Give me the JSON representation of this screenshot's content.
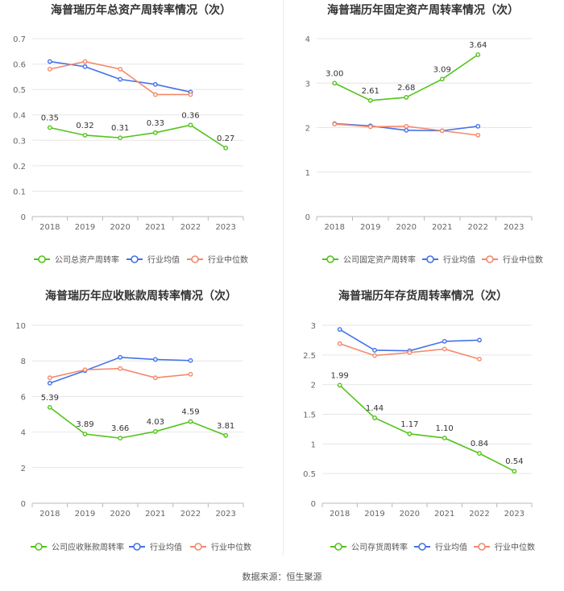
{
  "source_text": "数据来源：恒生聚源",
  "colors": {
    "company": "#52c41a",
    "avg": "#4472e8",
    "median": "#f4896b",
    "grid": "#e6e6e6",
    "axis": "#b8b8b8",
    "tick": "#666666",
    "title": "#333333"
  },
  "chart_data": [
    {
      "type": "line",
      "title": "海普瑞历年总资产周转率情况（次）",
      "categories": [
        "2018",
        "2019",
        "2020",
        "2021",
        "2022",
        "2023"
      ],
      "ylim": [
        0,
        0.7
      ],
      "yticks": [
        "0",
        "0.1",
        "0.2",
        "0.3",
        "0.4",
        "0.5",
        "0.6",
        "0.7"
      ],
      "series": [
        {
          "name": "公司总资产周转率",
          "key": "company",
          "values": [
            0.35,
            0.32,
            0.31,
            0.33,
            0.36,
            0.27
          ],
          "labels": [
            "0.35",
            "0.32",
            "0.31",
            "0.33",
            "0.36",
            "0.27"
          ]
        },
        {
          "name": "行业均值",
          "key": "avg",
          "values": [
            0.61,
            0.59,
            0.54,
            0.52,
            0.49,
            null
          ]
        },
        {
          "name": "行业中位数",
          "key": "median",
          "values": [
            0.58,
            0.61,
            0.58,
            0.48,
            0.48,
            null
          ]
        }
      ]
    },
    {
      "type": "line",
      "title": "海普瑞历年固定资产周转率情况（次）",
      "categories": [
        "2018",
        "2019",
        "2020",
        "2021",
        "2022",
        "2023"
      ],
      "ylim": [
        0,
        4
      ],
      "yticks": [
        "0",
        "1",
        "2",
        "3",
        "4"
      ],
      "series": [
        {
          "name": "公司固定资产周转率",
          "key": "company",
          "values": [
            3.0,
            2.61,
            2.68,
            3.09,
            3.64,
            null
          ],
          "labels": [
            "3.00",
            "2.61",
            "2.68",
            "3.09",
            "3.64",
            ""
          ]
        },
        {
          "name": "行业均值",
          "key": "avg",
          "values": [
            2.09,
            2.04,
            1.94,
            1.93,
            2.03,
            null
          ]
        },
        {
          "name": "行业中位数",
          "key": "median",
          "values": [
            2.08,
            2.02,
            2.03,
            1.93,
            1.83,
            null
          ]
        }
      ]
    },
    {
      "type": "line",
      "title": "海普瑞历年应收账款周转率情况（次）",
      "categories": [
        "2018",
        "2019",
        "2020",
        "2021",
        "2022",
        "2023"
      ],
      "ylim": [
        0,
        10
      ],
      "yticks": [
        "0",
        "2",
        "4",
        "6",
        "8",
        "10"
      ],
      "series": [
        {
          "name": "公司应收账款周转率",
          "key": "company",
          "values": [
            5.39,
            3.89,
            3.66,
            4.03,
            4.59,
            3.81
          ],
          "labels": [
            "5.39",
            "3.89",
            "3.66",
            "4.03",
            "4.59",
            "3.81"
          ]
        },
        {
          "name": "行业均值",
          "key": "avg",
          "values": [
            6.75,
            7.45,
            8.2,
            8.08,
            8.02,
            null
          ]
        },
        {
          "name": "行业中位数",
          "key": "median",
          "values": [
            7.05,
            7.5,
            7.57,
            7.05,
            7.25,
            null
          ]
        }
      ]
    },
    {
      "type": "line",
      "title": "海普瑞历年存货周转率情况（次）",
      "categories": [
        "2018",
        "2019",
        "2020",
        "2021",
        "2022",
        "2023"
      ],
      "ylim": [
        0,
        3
      ],
      "yticks": [
        "0",
        "0.5",
        "1",
        "1.5",
        "2",
        "2.5",
        "3"
      ],
      "series": [
        {
          "name": "公司存货周转率",
          "key": "company",
          "values": [
            1.99,
            1.44,
            1.17,
            1.1,
            0.84,
            0.54
          ],
          "labels": [
            "1.99",
            "1.44",
            "1.17",
            "1.10",
            "0.84",
            "0.54"
          ]
        },
        {
          "name": "行业均值",
          "key": "avg",
          "values": [
            2.93,
            2.58,
            2.57,
            2.73,
            2.75,
            null
          ]
        },
        {
          "name": "行业中位数",
          "key": "median",
          "values": [
            2.69,
            2.49,
            2.54,
            2.6,
            2.43,
            null
          ]
        }
      ]
    }
  ]
}
